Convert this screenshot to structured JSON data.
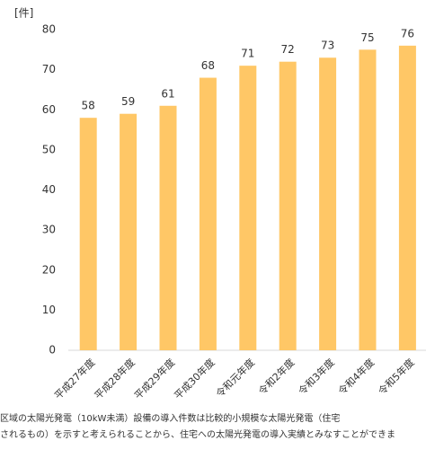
{
  "chart_data": {
    "type": "bar",
    "y_label": "[件]",
    "categories": [
      "平成27年度",
      "平成28年度",
      "平成29年度",
      "平成30年度",
      "令和元年度",
      "令和2年度",
      "令和3年度",
      "令和4年度",
      "令和5年度"
    ],
    "values": [
      58,
      59,
      61,
      68,
      71,
      72,
      73,
      75,
      76
    ],
    "color": "#FFC766",
    "ylim": [
      0,
      80
    ],
    "yticks": [
      0,
      10,
      20,
      30,
      40,
      50,
      60,
      70,
      80
    ],
    "grid": false,
    "notes": [
      "区域の太陽光発電（10kW未満）設備の導入件数は比較的小規模な太陽光発電（住宅",
      "されるもの）を示すと考えられることから、住宅への太陽光発電の導入実績とみなすことができま"
    ]
  }
}
